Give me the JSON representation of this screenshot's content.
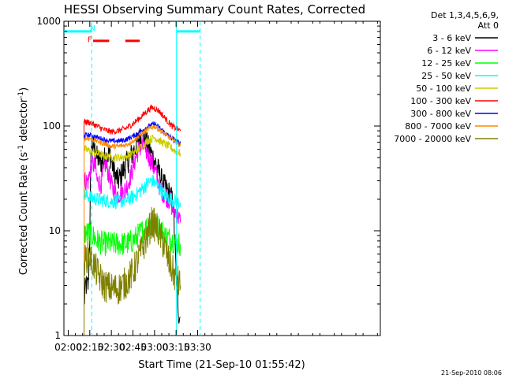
{
  "chart_data": {
    "type": "line",
    "title": "HESSI Observing Summary Count Rates, Corrected",
    "xlabel": "Start Time (21-Sep-10 01:55:42)",
    "ylabel_main": "Corrected Count Rate (s",
    "ylabel_sup1": "-1",
    "ylabel_mid": " detector",
    "ylabel_sup2": "-1",
    "ylabel_end": ")",
    "y_scale": "log",
    "ylim": [
      1,
      1000
    ],
    "xlim_minutes": [
      117,
      337
    ],
    "x_ticks": [
      {
        "label": "02:00",
        "m": 120
      },
      {
        "label": "02:15",
        "m": 135
      },
      {
        "label": "02:30",
        "m": 150
      },
      {
        "label": "02:45",
        "m": 165
      },
      {
        "label": "03:00",
        "m": 180
      },
      {
        "label": "03:15",
        "m": 195
      },
      {
        "label": "03:30",
        "m": 210
      }
    ],
    "y_ticks": [
      {
        "label": "1",
        "v": 1
      },
      {
        "label": "10",
        "v": 10
      },
      {
        "label": "100",
        "v": 100
      },
      {
        "label": "1000",
        "v": 1000
      }
    ],
    "legend": {
      "header1": "Det 1,3,4,5,6,9,",
      "header2": "Att 0",
      "placement": "right"
    },
    "series": [
      {
        "name": "3 - 6 keV",
        "color": "#000000",
        "x": [
          131,
          132,
          133,
          134,
          135,
          136,
          138,
          140,
          143,
          146,
          149,
          151,
          153,
          155,
          157,
          160,
          163,
          166,
          169,
          172,
          174,
          176,
          179,
          182,
          185,
          188,
          191,
          193,
          195,
          197,
          198
        ],
        "y": [
          2,
          3,
          3,
          3,
          10,
          72,
          60,
          50,
          45,
          50,
          55,
          40,
          33,
          30,
          35,
          42,
          50,
          60,
          75,
          80,
          70,
          62,
          50,
          40,
          30,
          25,
          22,
          18,
          4,
          1.5,
          1.5
        ]
      },
      {
        "name": "6 - 12 keV",
        "color": "#ff00ff",
        "x": [
          131,
          134,
          136,
          139,
          140,
          143,
          146,
          148,
          151,
          154,
          157,
          160,
          163,
          166,
          169,
          172,
          175,
          178,
          181,
          184,
          187,
          190,
          193,
          195,
          197,
          198
        ],
        "y": [
          30,
          30,
          45,
          40,
          30,
          28,
          45,
          35,
          25,
          22,
          23,
          25,
          32,
          45,
          60,
          65,
          55,
          45,
          35,
          25,
          22,
          20,
          16,
          15,
          13,
          12
        ]
      },
      {
        "name": "12 - 25 keV",
        "color": "#00ff00",
        "x": [
          131,
          134,
          137,
          140,
          145,
          150,
          155,
          160,
          165,
          170,
          175,
          178,
          181,
          184,
          187,
          190,
          193,
          195,
          197,
          198
        ],
        "y": [
          9.5,
          9.5,
          9,
          8,
          7.5,
          7.5,
          7.5,
          7.5,
          8,
          9.5,
          11,
          12,
          11.5,
          10.5,
          9,
          8.5,
          8,
          7.5,
          7.5,
          7.5
        ]
      },
      {
        "name": "25 - 50 keV",
        "color": "#00ffff",
        "x": [
          131,
          135,
          140,
          145,
          150,
          155,
          160,
          165,
          170,
          175,
          178,
          180,
          183,
          186,
          189,
          192,
          195,
          198
        ],
        "y": [
          22,
          21,
          20,
          19.5,
          19,
          19,
          19.5,
          21,
          24,
          28,
          30,
          29,
          26,
          23,
          21,
          20,
          19,
          18.5
        ]
      },
      {
        "name": "50 - 100 keV",
        "color": "#cccc00",
        "x": [
          131,
          135,
          140,
          145,
          150,
          155,
          160,
          165,
          170,
          175,
          180,
          185,
          190,
          195,
          198
        ],
        "y": [
          60,
          58,
          55,
          52,
          50,
          50,
          51,
          55,
          62,
          72,
          78,
          70,
          64,
          57,
          55
        ]
      },
      {
        "name": "100 - 300 keV",
        "color": "#ff0000",
        "x": [
          131,
          135,
          140,
          145,
          150,
          155,
          160,
          165,
          170,
          175,
          178,
          180,
          183,
          186,
          189,
          192,
          195,
          198
        ],
        "y": [
          110,
          108,
          100,
          92,
          88,
          90,
          95,
          105,
          120,
          140,
          150,
          148,
          140,
          125,
          112,
          100,
          95,
          90
        ]
      },
      {
        "name": "300 - 800 keV",
        "color": "#0000ff",
        "x": [
          131,
          135,
          140,
          145,
          150,
          155,
          160,
          165,
          170,
          175,
          180,
          185,
          190,
          195,
          198
        ],
        "y": [
          82,
          82,
          78,
          74,
          72,
          72,
          74,
          80,
          88,
          98,
          105,
          92,
          80,
          72,
          68
        ]
      },
      {
        "name": "800 - 7000 keV",
        "color": "#ff8800",
        "x": [
          131,
          135,
          140,
          145,
          150,
          155,
          160,
          165,
          170,
          175,
          180,
          185,
          190,
          195,
          198
        ],
        "y": [
          76,
          76,
          72,
          68,
          64,
          64,
          66,
          72,
          82,
          92,
          100,
          88,
          78,
          70,
          65
        ]
      },
      {
        "name": "7000 - 20000 keV",
        "color": "#808000",
        "x": [
          131,
          134,
          137,
          140,
          145,
          150,
          155,
          160,
          165,
          170,
          175,
          178,
          181,
          184,
          187,
          190,
          193,
          195,
          198
        ],
        "y": [
          5,
          6,
          5,
          4,
          3,
          2.8,
          2.8,
          3.2,
          4,
          6,
          9,
          12,
          11,
          9,
          7,
          5,
          4,
          3.5,
          3
        ]
      }
    ],
    "vlines": [
      {
        "m": 136.3,
        "color": "#00ffff",
        "style": "dashed"
      },
      {
        "m": 195.3,
        "color": "#00ffff",
        "style": "solid"
      },
      {
        "m": 211.7,
        "color": "#00ffff",
        "style": "dashed"
      }
    ],
    "cyan_bars": [
      {
        "x0": 117,
        "x1": 136.3,
        "y": 800
      },
      {
        "x0": 195.3,
        "x1": 211.7,
        "y": 800
      }
    ],
    "red_bars": [
      {
        "x0": 137.3,
        "x1": 148.5,
        "y": 650
      },
      {
        "x0": 159.7,
        "x1": 169.7,
        "y": 650
      }
    ],
    "annotations": [
      {
        "text": "F",
        "x": 135.0,
        "y": 680,
        "color": "#ff0000"
      },
      {
        "text": "N",
        "x": 137.0,
        "y": 870,
        "color": "#00ffff"
      }
    ]
  },
  "footer": {
    "timestamp": "21-Sep-2010 08:06"
  }
}
